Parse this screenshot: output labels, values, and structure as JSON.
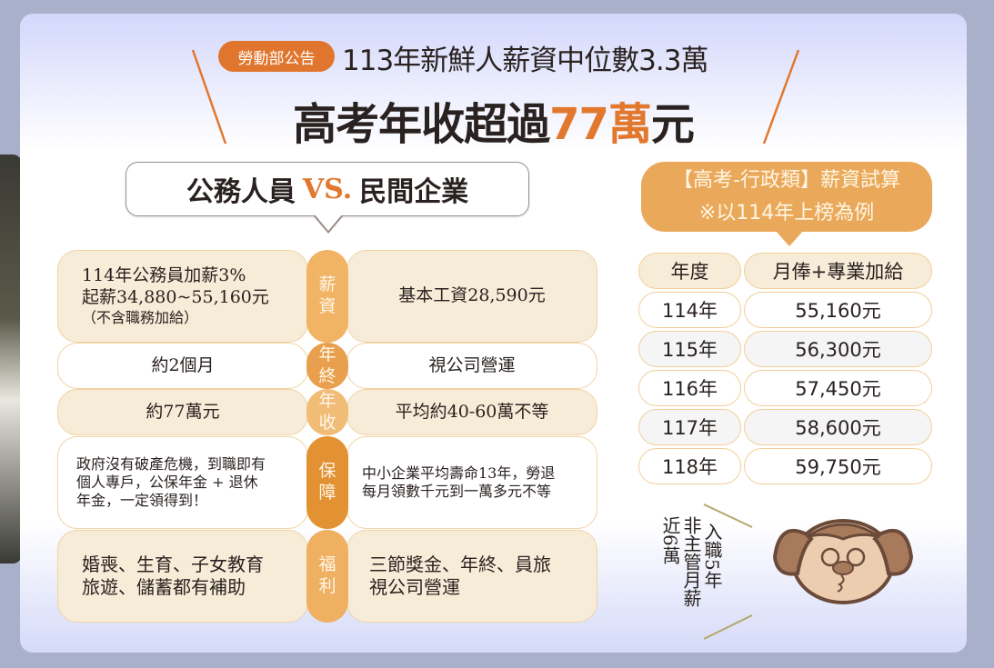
{
  "header": {
    "badge": "勞動部公告",
    "subtitle": "113年新鮮人薪資中位數3.3萬",
    "title_prefix": "高考年收超過",
    "title_highlight": "77萬",
    "title_suffix": "元"
  },
  "comparison": {
    "left_heading": "公務人員",
    "vs": "VS.",
    "right_heading": "民間企業",
    "rows": [
      {
        "category": [
          "薪",
          "資"
        ],
        "public": [
          "114年公務員加薪3%",
          "起薪34,880~55,160元",
          "（不含職務加給）"
        ],
        "private": [
          "基本工資28,590元"
        ]
      },
      {
        "category": [
          "年",
          "終"
        ],
        "public": [
          "約2個月"
        ],
        "private": [
          "視公司營運"
        ]
      },
      {
        "category": [
          "年",
          "收"
        ],
        "public": [
          "約77萬元"
        ],
        "private": [
          "平均約40-60萬不等"
        ]
      },
      {
        "category": [
          "保",
          "障"
        ],
        "public": [
          "政府沒有破產危機，到職即有",
          "個人專戶，公保年金 + 退休",
          "年金，一定領得到！"
        ],
        "private": [
          "中小企業平均壽命13年，勞退",
          "每月領數千元到一萬多元不等"
        ]
      },
      {
        "category": [
          "福",
          "利"
        ],
        "public": [
          "婚喪、生育、子女教育",
          "旅遊、儲蓄都有補助"
        ],
        "private": [
          "三節獎金、年終、員旅",
          "視公司營運"
        ]
      }
    ]
  },
  "salary_calc": {
    "title": "【高考-行政類】薪資試算",
    "note": "※以114年上榜為例",
    "headers": [
      "年度",
      "月俸+專業加給"
    ],
    "rows": [
      [
        "114年",
        "55,160元"
      ],
      [
        "115年",
        "56,300元"
      ],
      [
        "116年",
        "57,450元"
      ],
      [
        "117年",
        "58,600元"
      ],
      [
        "118年",
        "59,750元"
      ]
    ]
  },
  "callout": {
    "lines": [
      "入職5年",
      "非主管月薪",
      "近6萬"
    ]
  },
  "colors": {
    "accent": "#e0762e",
    "cream": "#f7ecd8",
    "pill": "#eaa95a"
  }
}
